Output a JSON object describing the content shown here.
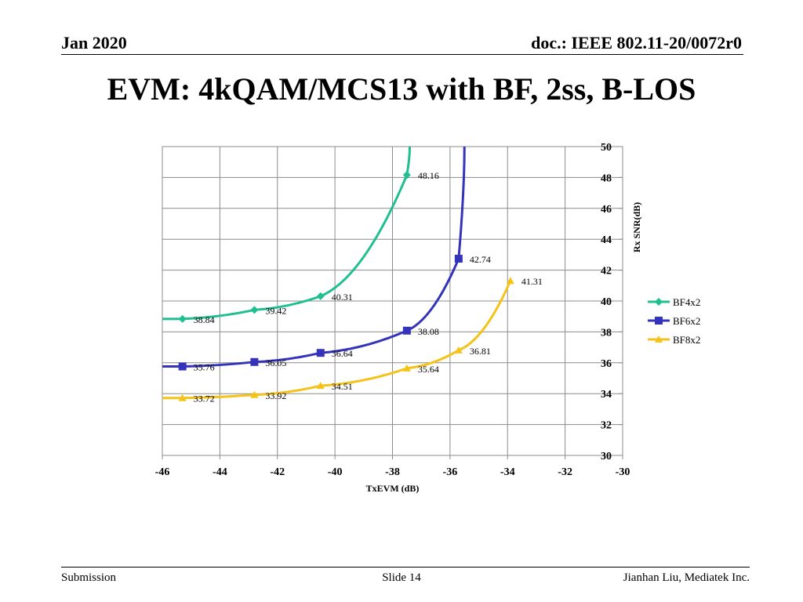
{
  "slide": {
    "date": "Jan 2020",
    "doc": "doc.: IEEE 802.11-20/0072r0",
    "title": "EVM: 4kQAM/MCS13 with BF, 2ss, B-LOS",
    "footer_left": "Submission",
    "footer_center": "Slide 14",
    "footer_right": "Jianhan Liu, Mediatek Inc."
  },
  "chart_data": {
    "type": "line",
    "title": "",
    "xlabel": "TxEVM (dB)",
    "ylabel": "Rx SNR(dB)",
    "xlim": [
      -46,
      -30
    ],
    "ylim": [
      30,
      50
    ],
    "x_ticks": [
      -46,
      -44,
      -42,
      -40,
      -38,
      -36,
      -34,
      -32,
      -30
    ],
    "y_ticks": [
      30,
      32,
      34,
      36,
      38,
      40,
      42,
      44,
      46,
      48,
      50
    ],
    "grid": true,
    "legend_position": "right",
    "series": [
      {
        "name": "BF4x2",
        "color": "#1fbf8f",
        "marker": "diamond",
        "points": [
          [
            -45.3,
            38.84
          ],
          [
            -42.8,
            39.42
          ],
          [
            -40.5,
            40.31
          ],
          [
            -37.5,
            48.16
          ]
        ],
        "data_labels": [
          "38.84",
          "39.42",
          "40.31",
          "48.16"
        ],
        "continues_to": [
          -37.4,
          50
        ]
      },
      {
        "name": "BF6x2",
        "color": "#3333bb",
        "marker": "square",
        "points": [
          [
            -45.3,
            35.76
          ],
          [
            -42.8,
            36.05
          ],
          [
            -40.5,
            36.64
          ],
          [
            -37.5,
            38.08
          ],
          [
            -35.7,
            42.74
          ]
        ],
        "data_labels": [
          "35.76",
          "36.05",
          "36.64",
          "38.08",
          "42.74"
        ],
        "continues_to": [
          -35.5,
          50
        ]
      },
      {
        "name": "BF8x2",
        "color": "#f5c218",
        "marker": "triangle",
        "points": [
          [
            -45.3,
            33.72
          ],
          [
            -42.8,
            33.92
          ],
          [
            -40.5,
            34.51
          ],
          [
            -37.5,
            35.64
          ],
          [
            -35.7,
            36.81
          ],
          [
            -33.9,
            41.31
          ]
        ],
        "data_labels": [
          "33.72",
          "33.92",
          "34.51",
          "35.64",
          "36.81",
          "41.31"
        ]
      }
    ]
  }
}
